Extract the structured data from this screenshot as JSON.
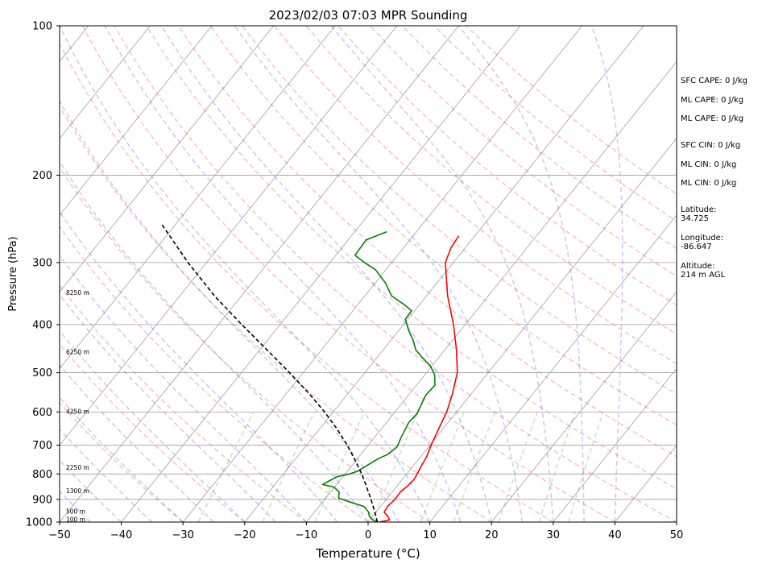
{
  "chart_data": {
    "type": "line",
    "title": "2023/02/03 07:03 MPR Sounding",
    "xlabel": "Temperature (°C)",
    "ylabel": "Pressure (hPa)",
    "xlim": [
      -50,
      50
    ],
    "ylim": [
      1000,
      100
    ],
    "yscale": "log",
    "grid": true,
    "x_ticks": [
      "−50",
      "−40",
      "−30",
      "−20",
      "−10",
      "0",
      "10",
      "20",
      "30",
      "40",
      "50"
    ],
    "x_tick_values": [
      -50,
      -40,
      -30,
      -20,
      -10,
      0,
      10,
      20,
      30,
      40,
      50
    ],
    "y_ticks": [
      "100",
      "200",
      "300",
      "400",
      "500",
      "600",
      "700",
      "800",
      "900",
      "1000"
    ],
    "y_tick_values": [
      100,
      200,
      300,
      400,
      500,
      600,
      700,
      800,
      900,
      1000
    ],
    "height_labels": [
      {
        "text": "100 m",
        "p": 990
      },
      {
        "text": "500 m",
        "p": 955
      },
      {
        "text": "1300 m",
        "p": 868
      },
      {
        "text": "2250 m",
        "p": 778
      },
      {
        "text": "4250 m",
        "p": 600
      },
      {
        "text": "6250 m",
        "p": 455
      },
      {
        "text": "8250 m",
        "p": 346
      }
    ],
    "series": [
      {
        "color": "#ff0000",
        "points": [
          [
            1000,
            1.8
          ],
          [
            990,
            3.2
          ],
          [
            975,
            2.5
          ],
          [
            955,
            1.3
          ],
          [
            930,
            1.1
          ],
          [
            900,
            1.4
          ],
          [
            870,
            1.3
          ],
          [
            845,
            1.7
          ],
          [
            820,
            1.9
          ],
          [
            800,
            1.7
          ],
          [
            770,
            1.3
          ],
          [
            740,
            1.0
          ],
          [
            700,
            0.2
          ],
          [
            650,
            -0.7
          ],
          [
            600,
            -1.6
          ],
          [
            550,
            -3.1
          ],
          [
            500,
            -5.0
          ],
          [
            450,
            -8.1
          ],
          [
            400,
            -11.9
          ],
          [
            350,
            -16.6
          ],
          [
            300,
            -21.3
          ],
          [
            280,
            -22.3
          ],
          [
            265,
            -22.6
          ]
        ]
      },
      {
        "color": "#008000",
        "points": [
          [
            1000,
            1.5
          ],
          [
            990,
            0.5
          ],
          [
            975,
            -0.5
          ],
          [
            955,
            -1.2
          ],
          [
            930,
            -2.7
          ],
          [
            910,
            -5.7
          ],
          [
            895,
            -7.9
          ],
          [
            870,
            -8.6
          ],
          [
            850,
            -10.1
          ],
          [
            840,
            -12.3
          ],
          [
            825,
            -11.6
          ],
          [
            810,
            -10.9
          ],
          [
            800,
            -9.3
          ],
          [
            790,
            -8.3
          ],
          [
            775,
            -7.8
          ],
          [
            760,
            -7.2
          ],
          [
            745,
            -6.6
          ],
          [
            730,
            -5.6
          ],
          [
            705,
            -5.1
          ],
          [
            680,
            -5.6
          ],
          [
            655,
            -6.0
          ],
          [
            630,
            -6.4
          ],
          [
            605,
            -6.2
          ],
          [
            580,
            -6.7
          ],
          [
            555,
            -7.2
          ],
          [
            530,
            -7.0
          ],
          [
            505,
            -8.4
          ],
          [
            485,
            -10.2
          ],
          [
            465,
            -12.8
          ],
          [
            450,
            -14.7
          ],
          [
            430,
            -16.4
          ],
          [
            410,
            -18.5
          ],
          [
            390,
            -20.4
          ],
          [
            375,
            -20.5
          ],
          [
            365,
            -22.4
          ],
          [
            350,
            -25.7
          ],
          [
            330,
            -28.3
          ],
          [
            310,
            -31.7
          ],
          [
            300,
            -34.4
          ],
          [
            290,
            -36.9
          ],
          [
            270,
            -37.1
          ],
          [
            260,
            -34.8
          ]
        ]
      },
      {
        "color": "#000000",
        "style": "dashed",
        "points": [
          [
            1000,
            1.5
          ],
          [
            950,
            -0.4
          ],
          [
            900,
            -2.5
          ],
          [
            850,
            -4.8
          ],
          [
            800,
            -7.3
          ],
          [
            750,
            -10.2
          ],
          [
            700,
            -13.4
          ],
          [
            650,
            -17.1
          ],
          [
            600,
            -21.4
          ],
          [
            550,
            -26.4
          ],
          [
            500,
            -32.2
          ],
          [
            450,
            -38.8
          ],
          [
            400,
            -46.2
          ],
          [
            350,
            -54.4
          ],
          [
            300,
            -63.0
          ],
          [
            250,
            -72.5
          ]
        ]
      }
    ],
    "background_lines": {
      "isotherms_interval": 10,
      "dry_adiabats": [
        -30,
        -20,
        -10,
        0,
        10,
        20,
        30,
        40,
        50,
        60,
        70,
        80,
        90,
        100,
        110,
        120,
        130,
        140,
        150,
        160
      ],
      "moist_adiabats": [
        -50,
        -45,
        -40,
        -35,
        -30,
        -25,
        -20,
        -15,
        -10,
        -5,
        0,
        5,
        10,
        15,
        20,
        25,
        30,
        35,
        40
      ],
      "mixing_ratio_lines": [
        0.4,
        1,
        2,
        4,
        7,
        10,
        16,
        24,
        32
      ],
      "colors": {
        "isotherm": "#a0a0a0",
        "dry_adiabat": "#ff0000",
        "moist_adiabat": "#0000ff",
        "mixing_ratio": "#008000",
        "isobar": "#a0a0a0"
      }
    }
  },
  "side_panel": {
    "sfc_cape": "SFC CAPE: 0 J/kg",
    "ml_cape": "ML CAPE: 0 J/kg",
    "mu_cape": "ML CAPE: 0 J/kg",
    "sfc_cin": "SFC CIN: 0 J/kg",
    "ml_cin": "ML CIN: 0 J/kg",
    "mu_cin": "ML CIN: 0 J/kg",
    "latitude": "Latitude:\n34.725",
    "longitude": "Longitude:\n-86.647",
    "altitude": "Altitude:\n214 m AGL"
  }
}
